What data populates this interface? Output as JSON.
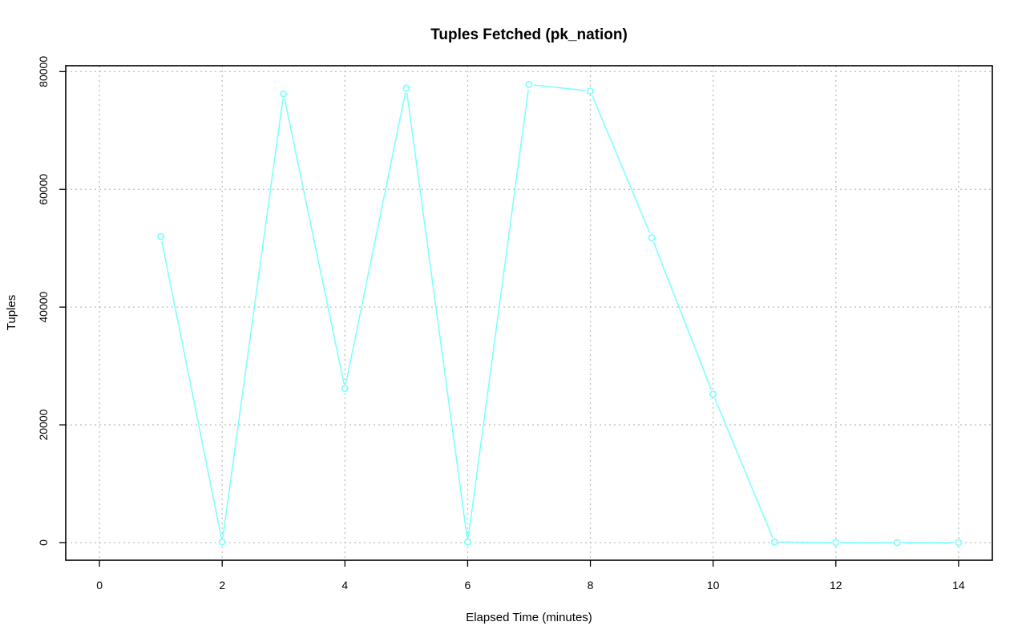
{
  "chart_data": {
    "type": "line",
    "title": "Tuples Fetched (pk_nation)",
    "xlabel": "Elapsed Time (minutes)",
    "ylabel": "Tuples",
    "xlim": [
      -0.55,
      14.55
    ],
    "ylim": [
      -3000,
      81000
    ],
    "x_ticks": [
      0,
      2,
      4,
      6,
      8,
      10,
      12,
      14
    ],
    "y_ticks": [
      0,
      20000,
      40000,
      60000,
      80000
    ],
    "grid": true,
    "series": [
      {
        "color": "#7fffff",
        "x": [
          1,
          2,
          3,
          4,
          5,
          6,
          7,
          8,
          9,
          10,
          11,
          12,
          13,
          14
        ],
        "y": [
          52000,
          100,
          76200,
          26200,
          77200,
          100,
          77800,
          76700,
          51800,
          25200,
          100,
          0,
          0,
          0
        ]
      }
    ]
  }
}
